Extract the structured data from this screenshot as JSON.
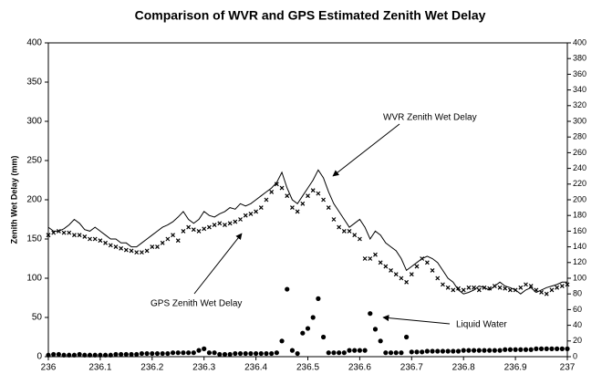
{
  "chart_data": {
    "type": "line",
    "title": "Comparison of WVR and GPS Estimated Zenith Wet Delay",
    "ylabel": "Zenith Wet Delay (mm)",
    "annotations": [
      "WVR Zenith Wet Delay",
      "GPS Zenith Wet Delay",
      "Liquid Water"
    ],
    "x": [
      236,
      236.01,
      236.02,
      236.03,
      236.04,
      236.05,
      236.06,
      236.07,
      236.08,
      236.09,
      236.1,
      236.11,
      236.12,
      236.13,
      236.14,
      236.15,
      236.16,
      236.17,
      236.18,
      236.19,
      236.2,
      236.21,
      236.22,
      236.23,
      236.24,
      236.25,
      236.26,
      236.27,
      236.28,
      236.29,
      236.3,
      236.31,
      236.32,
      236.33,
      236.34,
      236.35,
      236.36,
      236.37,
      236.38,
      236.39,
      236.4,
      236.41,
      236.42,
      236.43,
      236.44,
      236.45,
      236.46,
      236.47,
      236.48,
      236.49,
      236.5,
      236.51,
      236.52,
      236.53,
      236.54,
      236.55,
      236.56,
      236.57,
      236.58,
      236.59,
      236.6,
      236.61,
      236.62,
      236.63,
      236.64,
      236.65,
      236.66,
      236.67,
      236.68,
      236.69,
      236.7,
      236.71,
      236.72,
      236.73,
      236.74,
      236.75,
      236.76,
      236.77,
      236.78,
      236.79,
      236.8,
      236.81,
      236.82,
      236.83,
      236.84,
      236.85,
      236.86,
      236.87,
      236.88,
      236.89,
      236.9,
      236.91,
      236.92,
      236.93,
      236.94,
      236.95,
      236.96,
      236.97,
      236.98,
      236.99,
      237
    ],
    "series": [
      {
        "name": "WVR Zenith Wet Delay",
        "color": "#000000",
        "style": "line",
        "values": [
          165,
          160,
          160,
          163,
          168,
          175,
          170,
          162,
          160,
          165,
          160,
          155,
          150,
          150,
          145,
          145,
          140,
          140,
          145,
          150,
          155,
          160,
          165,
          168,
          172,
          178,
          185,
          175,
          170,
          175,
          185,
          180,
          178,
          182,
          185,
          190,
          188,
          195,
          192,
          195,
          200,
          205,
          210,
          215,
          222,
          235,
          215,
          200,
          195,
          205,
          215,
          225,
          238,
          228,
          210,
          195,
          185,
          175,
          165,
          170,
          175,
          165,
          150,
          160,
          155,
          145,
          140,
          135,
          125,
          110,
          115,
          120,
          125,
          128,
          125,
          120,
          110,
          100,
          95,
          85,
          80,
          82,
          85,
          90,
          88,
          85,
          90,
          95,
          90,
          88,
          85,
          80,
          85,
          88,
          82,
          85,
          88,
          90,
          92,
          95,
          95
        ]
      },
      {
        "name": "GPS Zenith Wet Delay",
        "color": "#000000",
        "style": "x",
        "values": [
          155,
          158,
          160,
          158,
          158,
          155,
          155,
          153,
          150,
          150,
          148,
          145,
          142,
          140,
          138,
          136,
          135,
          133,
          133,
          135,
          140,
          140,
          145,
          150,
          155,
          148,
          160,
          165,
          162,
          160,
          163,
          165,
          168,
          170,
          168,
          170,
          172,
          175,
          180,
          182,
          185,
          190,
          200,
          210,
          220,
          215,
          205,
          190,
          185,
          195,
          205,
          212,
          208,
          200,
          190,
          175,
          165,
          160,
          160,
          155,
          150,
          125,
          125,
          130,
          120,
          115,
          110,
          105,
          100,
          95,
          105,
          115,
          125,
          120,
          110,
          100,
          92,
          88,
          85,
          87,
          85,
          88,
          88,
          85,
          88,
          87,
          90,
          88,
          87,
          85,
          85,
          88,
          92,
          90,
          85,
          82,
          80,
          85,
          88,
          90,
          92
        ]
      },
      {
        "name": "Liquid Water",
        "color": "#000000",
        "style": "dot",
        "axis": "y2",
        "values": [
          2,
          3,
          3,
          2,
          2,
          2,
          3,
          2,
          2,
          2,
          2,
          2,
          2,
          3,
          3,
          3,
          3,
          3,
          4,
          4,
          4,
          4,
          4,
          4,
          5,
          5,
          5,
          5,
          5,
          8,
          10,
          5,
          5,
          3,
          3,
          3,
          4,
          4,
          4,
          4,
          4,
          4,
          4,
          4,
          5,
          20,
          86,
          8,
          4,
          30,
          36,
          50,
          74,
          25,
          5,
          5,
          5,
          5,
          8,
          8,
          8,
          8,
          55,
          35,
          20,
          5,
          5,
          5,
          5,
          25,
          6,
          6,
          6,
          7,
          7,
          7,
          7,
          7,
          7,
          7,
          8,
          8,
          8,
          8,
          8,
          8,
          8,
          8,
          9,
          9,
          9,
          9,
          9,
          9,
          10,
          10,
          10,
          10,
          10,
          10,
          10
        ]
      }
    ],
    "xlim": [
      236,
      237
    ],
    "xticks": [
      236,
      236.1,
      236.2,
      236.3,
      236.4,
      236.5,
      236.6,
      236.7,
      236.8,
      236.9,
      237
    ],
    "ylim": [
      0,
      400
    ],
    "yticks": [
      0,
      50,
      100,
      150,
      200,
      250,
      300,
      350,
      400
    ],
    "y2lim": [
      0,
      400
    ],
    "y2ticks": [
      0,
      20,
      40,
      60,
      80,
      100,
      120,
      140,
      160,
      180,
      200,
      220,
      240,
      260,
      280,
      300,
      320,
      340,
      360,
      380,
      400
    ]
  }
}
